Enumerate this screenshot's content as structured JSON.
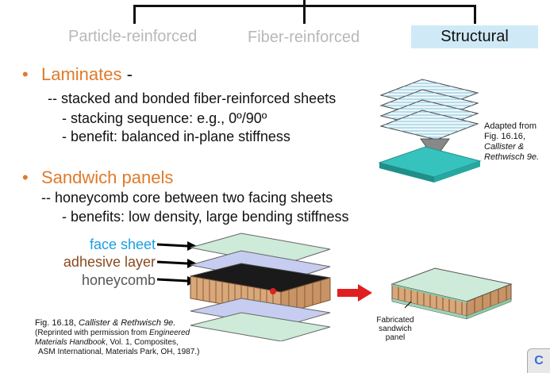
{
  "header": {
    "categories": [
      {
        "label": "Particle-reinforced",
        "state": "inactive"
      },
      {
        "label": "Fiber-reinforced",
        "state": "inactive"
      },
      {
        "label": "Structural",
        "state": "active"
      }
    ]
  },
  "laminates": {
    "title": "Laminates",
    "dash": "-",
    "lines": [
      "-- stacked and bonded fiber-reinforced sheets",
      "- stacking sequence:  e.g., 0º/90º",
      "- benefit:  balanced in-plane stiffness"
    ],
    "caption": [
      "Adapted from",
      "Fig. 16.16,",
      "Callister &",
      "Rethwisch 9e."
    ]
  },
  "sandwich": {
    "title": "Sandwich panels",
    "lines": [
      "-- honeycomb core between two facing sheets",
      "- benefits:  low density, large bending stiffness"
    ],
    "labels": {
      "face_sheet": "face sheet",
      "adhesive_layer": "adhesive layer",
      "honeycomb": "honeycomb"
    },
    "caption": {
      "fig": "Fig. 16.18,",
      "authors": "Callister & Rethwisch 9e.",
      "line2a": "(Reprinted with permission from ",
      "line2b": "Engineered",
      "line3a": "Materials Handbook",
      "line3b": ", Vol. 1, Composites,",
      "line4": "ASM International, Materials Park, OH, 1987.)"
    },
    "fabricated_label": [
      "Fabricated",
      "sandwich",
      "panel"
    ]
  },
  "corner_button": {
    "label": "C"
  },
  "colors": {
    "accent_orange": "#e07a2a",
    "face_sheet_blue": "#1aa0e0",
    "adhesive_brown": "#8a4a1e",
    "honeycomb_gray": "#555555",
    "teal_plate": "#36c3bd",
    "active_tab": "#cfeaf6"
  }
}
